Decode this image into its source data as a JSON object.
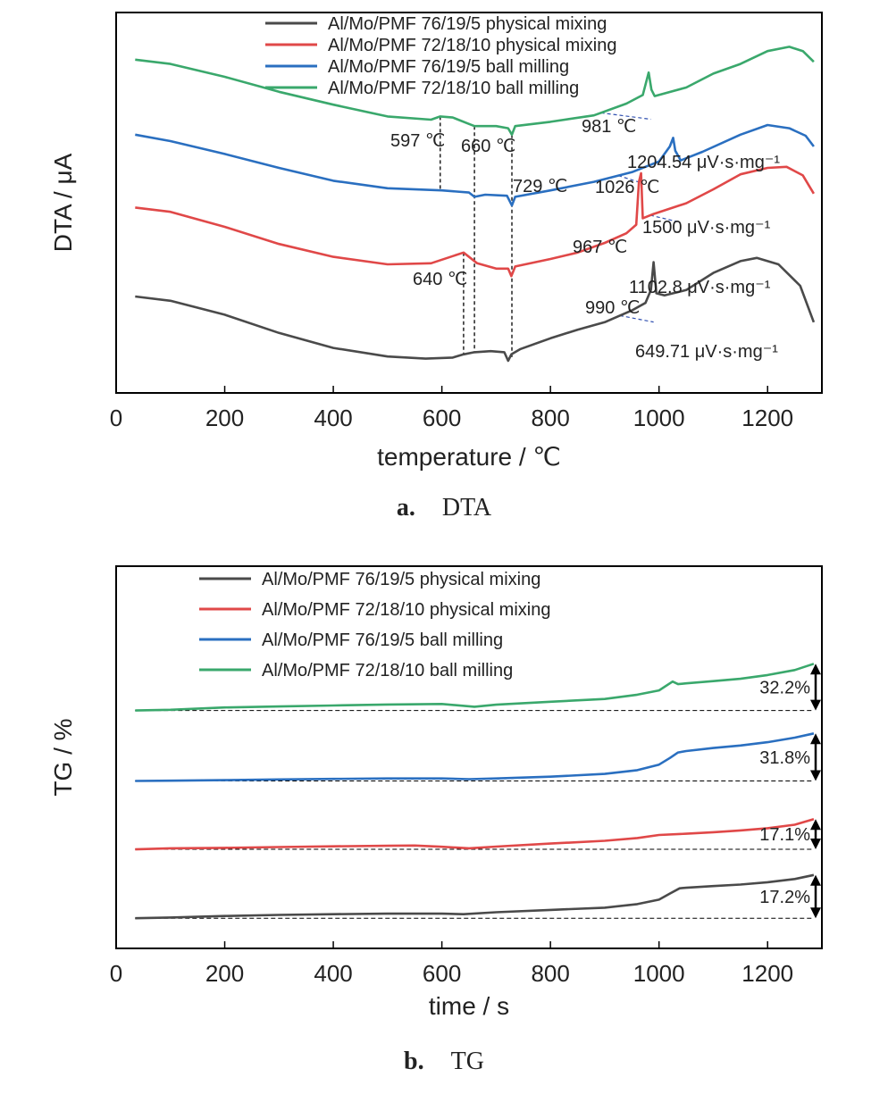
{
  "figure": {
    "caption_a_label": "a.",
    "caption_a_title": "DTA",
    "caption_b_label": "b.",
    "caption_b_title": "TG"
  },
  "colors": {
    "black": "#4a4a4a",
    "red": "#e04848",
    "blue": "#2a6fc0",
    "green": "#3aa86c"
  },
  "chart_data": [
    {
      "type": "line",
      "panel": "a",
      "xlabel": "temperature / ℃",
      "ylabel": "DTA / μA",
      "xlim": [
        0,
        1300
      ],
      "x_ticks": [
        0,
        200,
        400,
        600,
        800,
        1000,
        1200
      ],
      "y_ticks_shown": false,
      "grid": false,
      "legend_position": "top-center",
      "series": [
        {
          "name": "Al/Mo/PMF 76/19/5 physical mixing",
          "color": "black",
          "points": [
            [
              35,
              0.0
            ],
            [
              100,
              -0.4
            ],
            [
              200,
              -1.7
            ],
            [
              300,
              -3.4
            ],
            [
              400,
              -4.8
            ],
            [
              500,
              -5.6
            ],
            [
              570,
              -5.8
            ],
            [
              620,
              -5.7
            ],
            [
              640,
              -5.4
            ],
            [
              660,
              -5.2
            ],
            [
              690,
              -5.1
            ],
            [
              715,
              -5.2
            ],
            [
              722,
              -6.0
            ],
            [
              728,
              -5.4
            ],
            [
              745,
              -4.9
            ],
            [
              800,
              -3.9
            ],
            [
              850,
              -3.1
            ],
            [
              900,
              -2.4
            ],
            [
              950,
              -1.3
            ],
            [
              975,
              -0.6
            ],
            [
              985,
              0.6
            ],
            [
              990,
              3.2
            ],
            [
              995,
              0.3
            ],
            [
              1010,
              0.1
            ],
            [
              1050,
              0.6
            ],
            [
              1100,
              2.2
            ],
            [
              1150,
              3.3
            ],
            [
              1180,
              3.6
            ],
            [
              1220,
              3.0
            ],
            [
              1260,
              1.0
            ],
            [
              1285,
              -2.4
            ]
          ]
        },
        {
          "name": "Al/Mo/PMF 72/18/10 physical mixing",
          "color": "red",
          "points": [
            [
              35,
              8.3
            ],
            [
              100,
              7.9
            ],
            [
              200,
              6.5
            ],
            [
              300,
              4.9
            ],
            [
              400,
              3.7
            ],
            [
              500,
              3.0
            ],
            [
              580,
              3.1
            ],
            [
              610,
              3.6
            ],
            [
              640,
              4.1
            ],
            [
              665,
              3.1
            ],
            [
              700,
              2.6
            ],
            [
              722,
              2.6
            ],
            [
              728,
              1.9
            ],
            [
              735,
              2.8
            ],
            [
              800,
              3.5
            ],
            [
              850,
              4.1
            ],
            [
              900,
              5.0
            ],
            [
              940,
              5.9
            ],
            [
              958,
              6.7
            ],
            [
              963,
              10.7
            ],
            [
              967,
              11.5
            ],
            [
              970,
              7.3
            ],
            [
              990,
              7.7
            ],
            [
              1050,
              8.7
            ],
            [
              1100,
              10.0
            ],
            [
              1150,
              11.4
            ],
            [
              1200,
              12.0
            ],
            [
              1235,
              12.1
            ],
            [
              1265,
              11.3
            ],
            [
              1285,
              9.6
            ]
          ]
        },
        {
          "name": "Al/Mo/PMF 76/19/5 ball milling",
          "color": "blue",
          "points": [
            [
              35,
              15.1
            ],
            [
              100,
              14.5
            ],
            [
              200,
              13.3
            ],
            [
              300,
              12.0
            ],
            [
              400,
              10.8
            ],
            [
              500,
              10.1
            ],
            [
              600,
              9.9
            ],
            [
              650,
              9.7
            ],
            [
              660,
              9.3
            ],
            [
              680,
              9.5
            ],
            [
              720,
              9.4
            ],
            [
              729,
              8.5
            ],
            [
              735,
              9.3
            ],
            [
              800,
              9.9
            ],
            [
              880,
              10.7
            ],
            [
              950,
              11.6
            ],
            [
              1000,
              12.6
            ],
            [
              1020,
              14.0
            ],
            [
              1026,
              14.8
            ],
            [
              1030,
              13.6
            ],
            [
              1040,
              12.7
            ],
            [
              1080,
              13.5
            ],
            [
              1150,
              15.1
            ],
            [
              1200,
              16.0
            ],
            [
              1240,
              15.7
            ],
            [
              1270,
              15.0
            ],
            [
              1285,
              14.0
            ]
          ]
        },
        {
          "name": "Al/Mo/PMF 72/18/10 ball milling",
          "color": "green",
          "points": [
            [
              35,
              22.1
            ],
            [
              100,
              21.7
            ],
            [
              200,
              20.5
            ],
            [
              300,
              19.1
            ],
            [
              400,
              17.9
            ],
            [
              500,
              16.8
            ],
            [
              580,
              16.5
            ],
            [
              597,
              16.8
            ],
            [
              620,
              16.7
            ],
            [
              650,
              16.1
            ],
            [
              660,
              15.9
            ],
            [
              700,
              15.9
            ],
            [
              722,
              15.7
            ],
            [
              729,
              15.1
            ],
            [
              735,
              15.9
            ],
            [
              800,
              16.3
            ],
            [
              880,
              16.9
            ],
            [
              940,
              18.0
            ],
            [
              970,
              18.8
            ],
            [
              981,
              20.9
            ],
            [
              986,
              19.3
            ],
            [
              992,
              18.7
            ],
            [
              1050,
              19.5
            ],
            [
              1100,
              20.8
            ],
            [
              1150,
              21.7
            ],
            [
              1200,
              22.9
            ],
            [
              1240,
              23.3
            ],
            [
              1265,
              22.9
            ],
            [
              1285,
              21.9
            ]
          ]
        }
      ],
      "annotations": [
        {
          "text": "597 ℃",
          "x": 597,
          "dashed_to": "black"
        },
        {
          "text": "660 ℃",
          "x": 660,
          "dashed_to": "black"
        },
        {
          "text": "729 ℃",
          "x": 729,
          "dashed_to": "black"
        },
        {
          "text": "640 ℃",
          "x": 640,
          "dashed_to": "black"
        },
        {
          "text": "981 ℃",
          "series": "green"
        },
        {
          "text": "1026 ℃",
          "series": "blue"
        },
        {
          "text": "967 ℃",
          "series": "red"
        },
        {
          "text": "990 ℃",
          "series": "black"
        },
        {
          "text": "1204.54 μV·s·mg⁻¹",
          "series": "green"
        },
        {
          "text": "1500 μV·s·mg⁻¹",
          "series": "blue"
        },
        {
          "text": "1102.8 μV·s·mg⁻¹",
          "series": "red"
        },
        {
          "text": "649.71 μV·s·mg⁻¹",
          "series": "black"
        }
      ]
    },
    {
      "type": "line",
      "panel": "b",
      "xlabel": "time / s",
      "ylabel": "TG / %",
      "xlim": [
        0,
        1300
      ],
      "x_ticks": [
        0,
        200,
        400,
        600,
        800,
        1000,
        1200
      ],
      "y_ticks_shown": false,
      "grid": false,
      "legend_position": "top-center",
      "series": [
        {
          "name": "Al/Mo/PMF 76/19/5 physical mixing",
          "color": "black",
          "baseline": 0.0,
          "points": [
            [
              35,
              0.0
            ],
            [
              100,
              0.3
            ],
            [
              200,
              0.9
            ],
            [
              300,
              1.3
            ],
            [
              400,
              1.6
            ],
            [
              500,
              1.8
            ],
            [
              600,
              1.8
            ],
            [
              640,
              1.6
            ],
            [
              700,
              2.4
            ],
            [
              800,
              3.3
            ],
            [
              900,
              4.2
            ],
            [
              960,
              5.6
            ],
            [
              1000,
              7.4
            ],
            [
              1020,
              9.8
            ],
            [
              1038,
              11.9
            ],
            [
              1050,
              12.1
            ],
            [
              1100,
              12.8
            ],
            [
              1150,
              13.4
            ],
            [
              1200,
              14.3
            ],
            [
              1250,
              15.6
            ],
            [
              1285,
              17.2
            ]
          ]
        },
        {
          "name": "Al/Mo/PMF 72/18/10 physical mixing",
          "color": "red",
          "baseline": 27.4,
          "points": [
            [
              35,
              27.4
            ],
            [
              100,
              27.8
            ],
            [
              200,
              28.0
            ],
            [
              300,
              28.3
            ],
            [
              400,
              28.6
            ],
            [
              500,
              28.8
            ],
            [
              550,
              28.9
            ],
            [
              600,
              28.4
            ],
            [
              650,
              27.8
            ],
            [
              700,
              28.5
            ],
            [
              800,
              29.7
            ],
            [
              900,
              30.8
            ],
            [
              960,
              31.9
            ],
            [
              1000,
              33.1
            ],
            [
              1050,
              33.6
            ],
            [
              1100,
              34.2
            ],
            [
              1150,
              34.9
            ],
            [
              1200,
              35.8
            ],
            [
              1250,
              37.2
            ],
            [
              1285,
              39.4
            ]
          ]
        },
        {
          "name": "Al/Mo/PMF 76/19/5 ball milling",
          "color": "blue",
          "baseline": 54.6,
          "points": [
            [
              35,
              54.6
            ],
            [
              100,
              54.7
            ],
            [
              200,
              54.9
            ],
            [
              300,
              55.2
            ],
            [
              400,
              55.4
            ],
            [
              500,
              55.6
            ],
            [
              600,
              55.6
            ],
            [
              650,
              55.3
            ],
            [
              700,
              55.6
            ],
            [
              800,
              56.3
            ],
            [
              900,
              57.4
            ],
            [
              960,
              58.9
            ],
            [
              1000,
              61.1
            ],
            [
              1020,
              63.7
            ],
            [
              1035,
              65.9
            ],
            [
              1050,
              66.5
            ],
            [
              1100,
              67.7
            ],
            [
              1150,
              68.7
            ],
            [
              1200,
              70.0
            ],
            [
              1250,
              71.8
            ],
            [
              1285,
              73.5
            ]
          ]
        },
        {
          "name": "Al/Mo/PMF 72/18/10 ball milling",
          "color": "green",
          "baseline": 82.6,
          "points": [
            [
              35,
              82.6
            ],
            [
              100,
              82.9
            ],
            [
              200,
              83.8
            ],
            [
              300,
              84.2
            ],
            [
              400,
              84.6
            ],
            [
              500,
              85.0
            ],
            [
              600,
              85.2
            ],
            [
              660,
              84.1
            ],
            [
              700,
              84.9
            ],
            [
              800,
              86.1
            ],
            [
              900,
              87.2
            ],
            [
              960,
              88.9
            ],
            [
              1000,
              90.6
            ],
            [
              1025,
              94.1
            ],
            [
              1035,
              93.1
            ],
            [
              1050,
              93.4
            ],
            [
              1100,
              94.3
            ],
            [
              1150,
              95.2
            ],
            [
              1200,
              96.7
            ],
            [
              1250,
              98.7
            ],
            [
              1285,
              101.2
            ]
          ]
        }
      ],
      "annotations": [
        {
          "text": "32.2%",
          "series": "green"
        },
        {
          "text": "31.8%",
          "series": "blue"
        },
        {
          "text": "17.1%",
          "series": "red"
        },
        {
          "text": "17.2%",
          "series": "black"
        }
      ]
    }
  ]
}
